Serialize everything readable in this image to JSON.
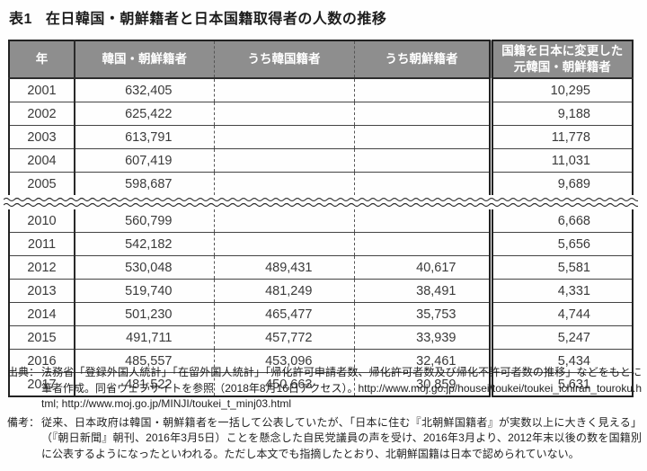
{
  "title": {
    "label": "表1",
    "text": "在日韓国・朝鮮籍者と日本国籍取得者の人数の推移"
  },
  "table": {
    "headers": [
      "年",
      "韓国・朝鮮籍者",
      "うち韓国籍者",
      "うち朝鮮籍者",
      "国籍を日本に変更した\n元韓国・朝鮮籍者"
    ],
    "rows": [
      {
        "year": "2001",
        "total": "632,405",
        "south": "",
        "north": "",
        "naturalized": "10,295"
      },
      {
        "year": "2002",
        "total": "625,422",
        "south": "",
        "north": "",
        "naturalized": "9,188"
      },
      {
        "year": "2003",
        "total": "613,791",
        "south": "",
        "north": "",
        "naturalized": "11,778"
      },
      {
        "year": "2004",
        "total": "607,419",
        "south": "",
        "north": "",
        "naturalized": "11,031"
      },
      {
        "year": "2005",
        "total": "598,687",
        "south": "",
        "north": "",
        "naturalized": "9,689"
      },
      {
        "break": true
      },
      {
        "year": "2010",
        "total": "560,799",
        "south": "",
        "north": "",
        "naturalized": "6,668"
      },
      {
        "year": "2011",
        "total": "542,182",
        "south": "",
        "north": "",
        "naturalized": "5,656"
      },
      {
        "year": "2012",
        "total": "530,048",
        "south": "489,431",
        "north": "40,617",
        "naturalized": "5,581"
      },
      {
        "year": "2013",
        "total": "519,740",
        "south": "481,249",
        "north": "38,491",
        "naturalized": "4,331"
      },
      {
        "year": "2014",
        "total": "501,230",
        "south": "465,477",
        "north": "35,753",
        "naturalized": "4,744"
      },
      {
        "year": "2015",
        "total": "491,711",
        "south": "457,772",
        "north": "33,939",
        "naturalized": "5,247"
      },
      {
        "year": "2016",
        "total": "485,557",
        "south": "453,096",
        "north": "32,461",
        "naturalized": "5,434"
      },
      {
        "year": "2017",
        "total": "481,522",
        "south": "450,663",
        "north": "30,859",
        "naturalized": "5,631"
      }
    ]
  },
  "notes": {
    "source_label": "出典：",
    "source_text": "法務省「登録外国人統計」「在留外国人統計」「帰化許可申請者数、帰化許可者数及び帰化不許可者数の推移」などをもとに筆者作成。同省ウェブサイトを参照（2018年8月16日アクセス）。http://www.moj.go.jp/housei/toukei/toukei_ichiran_touroku.html; http://www.moj.go.jp/MINJI/toukei_t_minj03.html",
    "remark_label": "備考：",
    "remark_text": "従来、日本政府は韓国・朝鮮籍者を一括して公表していたが、「日本に住む『北朝鮮国籍者』が実数以上に大きく見える」（『朝日新聞』朝刊、2016年3月5日）ことを懸念した自民党議員の声を受け、2016年3月より、2012年末以後の数を国籍別に公表するようになったといわれる。ただし本文でも指摘したとおり、北朝鮮国籍は日本で認められていない。"
  },
  "colors": {
    "header_bg": "#8e8e8e",
    "header_text": "#ffffff",
    "border": "#222222",
    "body_text": "#3a3a3a"
  }
}
